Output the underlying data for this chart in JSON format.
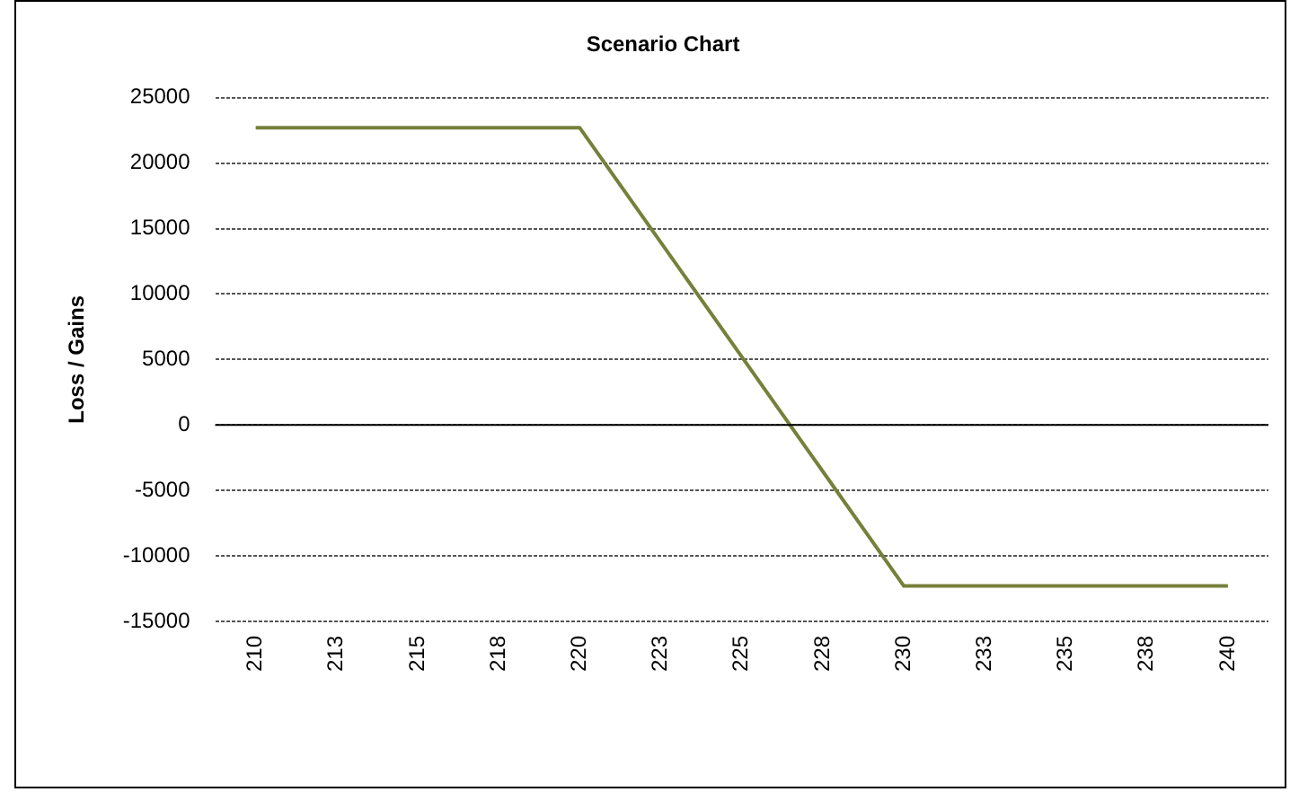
{
  "chart_data": {
    "type": "line",
    "title": "Scenario Chart",
    "ylabel": "Loss / Gains",
    "categories": [
      "210",
      "213",
      "215",
      "218",
      "220",
      "223",
      "225",
      "228",
      "230",
      "233",
      "235",
      "238",
      "240"
    ],
    "series": [
      {
        "color": "#76803a",
        "values": [
          22700,
          22700,
          22700,
          22700,
          22700,
          13950,
          5200,
          -3550,
          -12300,
          -12300,
          -12300,
          -12300,
          -12300
        ]
      }
    ],
    "ylim": [
      -15000,
      25000
    ],
    "yticks": [
      -15000,
      -10000,
      -5000,
      0,
      5000,
      10000,
      15000,
      20000,
      25000
    ],
    "grid": "y",
    "legend": false,
    "marker": "none",
    "line_style": "solid"
  }
}
